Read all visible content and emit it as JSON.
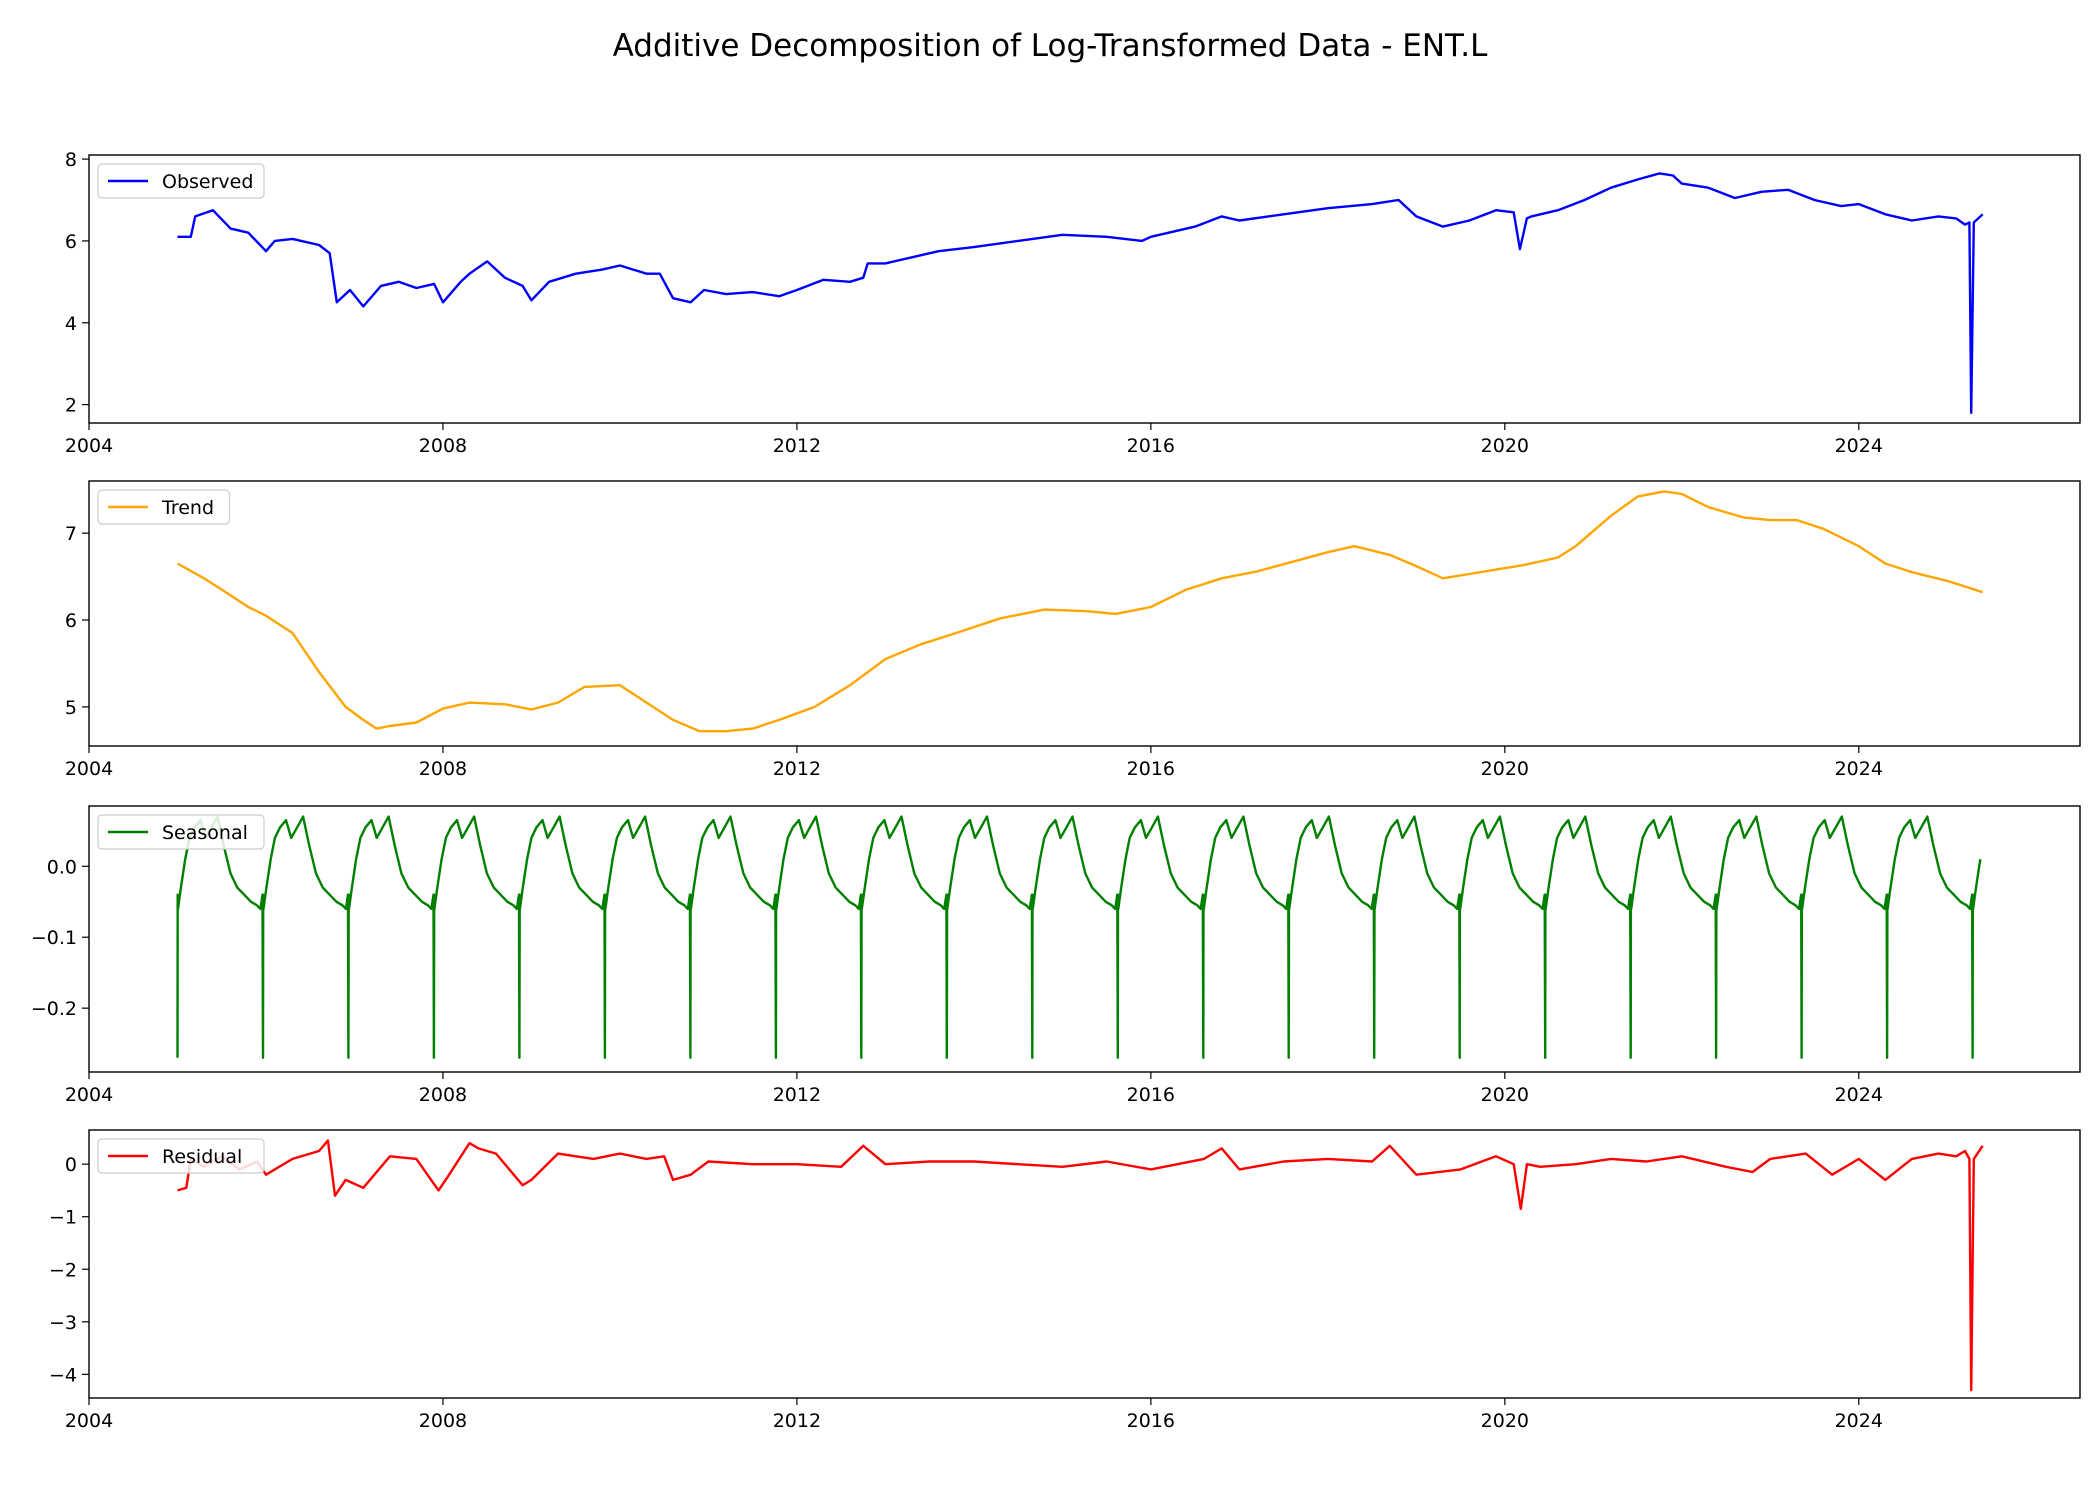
{
  "figure": {
    "title": "Additive Decomposition of Log-Transformed Data - ENT.L"
  },
  "chart_data": [
    {
      "type": "line",
      "name": "Observed",
      "color": "#0000ff",
      "xlim": [
        2004.0,
        2026.5
      ],
      "ylim": [
        1.55,
        8.1
      ],
      "xticks": [
        2004,
        2008,
        2012,
        2016,
        2020,
        2024
      ],
      "yticks": [
        2,
        4,
        6,
        8
      ],
      "ytick_labels": [
        "2",
        "4",
        "6",
        "8"
      ],
      "legend": "upper left",
      "series": [
        {
          "name": "Observed",
          "x": [
            2005.0,
            2005.15,
            2005.2,
            2005.4,
            2005.6,
            2005.8,
            2006.0,
            2006.1,
            2006.3,
            2006.6,
            2006.72,
            2006.8,
            2006.95,
            2007.1,
            2007.3,
            2007.5,
            2007.7,
            2007.9,
            2008.0,
            2008.2,
            2008.3,
            2008.5,
            2008.7,
            2008.9,
            2009.0,
            2009.2,
            2009.5,
            2009.8,
            2010.0,
            2010.3,
            2010.45,
            2010.6,
            2010.8,
            2010.95,
            2011.2,
            2011.5,
            2011.8,
            2012.0,
            2012.3,
            2012.6,
            2012.75,
            2012.8,
            2013.0,
            2013.3,
            2013.6,
            2014.0,
            2014.5,
            2015.0,
            2015.5,
            2015.9,
            2016.0,
            2016.5,
            2016.8,
            2017.0,
            2017.5,
            2018.0,
            2018.5,
            2018.8,
            2019.0,
            2019.3,
            2019.6,
            2019.9,
            2020.1,
            2020.17,
            2020.25,
            2020.3,
            2020.6,
            2020.9,
            2021.2,
            2021.5,
            2021.75,
            2021.9,
            2022.0,
            2022.3,
            2022.6,
            2022.9,
            2023.2,
            2023.5,
            2023.8,
            2024.0,
            2024.3,
            2024.6,
            2024.9,
            2025.1,
            2025.2,
            2025.25,
            2025.27,
            2025.3,
            2025.4
          ],
          "y": [
            6.1,
            6.1,
            6.6,
            6.75,
            6.3,
            6.2,
            5.75,
            6.0,
            6.05,
            5.9,
            5.7,
            4.5,
            4.8,
            4.4,
            4.9,
            5.0,
            4.85,
            4.95,
            4.5,
            5.0,
            5.2,
            5.5,
            5.1,
            4.9,
            4.55,
            5.0,
            5.2,
            5.3,
            5.4,
            5.2,
            5.2,
            4.6,
            4.5,
            4.8,
            4.7,
            4.75,
            4.65,
            4.8,
            5.05,
            5.0,
            5.1,
            5.45,
            5.45,
            5.6,
            5.75,
            5.85,
            6.0,
            6.15,
            6.1,
            6.0,
            6.1,
            6.35,
            6.6,
            6.5,
            6.65,
            6.8,
            6.9,
            7.0,
            6.6,
            6.35,
            6.5,
            6.75,
            6.7,
            5.8,
            6.55,
            6.6,
            6.75,
            7.0,
            7.3,
            7.5,
            7.65,
            7.6,
            7.4,
            7.3,
            7.05,
            7.2,
            7.25,
            7.0,
            6.85,
            6.9,
            6.65,
            6.5,
            6.6,
            6.55,
            6.4,
            6.45,
            1.8,
            6.45,
            6.65
          ]
        }
      ]
    },
    {
      "type": "line",
      "name": "Trend",
      "color": "#ffa500",
      "xlim": [
        2004.0,
        2026.5
      ],
      "ylim": [
        4.55,
        7.6
      ],
      "xticks": [
        2004,
        2008,
        2012,
        2016,
        2020,
        2024
      ],
      "yticks": [
        5,
        6,
        7
      ],
      "ytick_labels": [
        "5",
        "6",
        "7"
      ],
      "legend": "upper left",
      "series": [
        {
          "name": "Trend",
          "x": [
            2005.0,
            2005.3,
            2005.5,
            2005.8,
            2006.0,
            2006.3,
            2006.6,
            2006.9,
            2007.1,
            2007.25,
            2007.4,
            2007.7,
            2008.0,
            2008.3,
            2008.7,
            2009.0,
            2009.3,
            2009.6,
            2010.0,
            2010.3,
            2010.6,
            2010.9,
            2011.2,
            2011.5,
            2011.8,
            2012.2,
            2012.6,
            2013.0,
            2013.4,
            2013.8,
            2014.3,
            2014.8,
            2015.3,
            2015.6,
            2016.0,
            2016.4,
            2016.8,
            2017.2,
            2017.6,
            2018.0,
            2018.3,
            2018.7,
            2019.0,
            2019.3,
            2019.6,
            2019.9,
            2020.2,
            2020.6,
            2020.8,
            2021.2,
            2021.5,
            2021.8,
            2022.0,
            2022.3,
            2022.7,
            2023.0,
            2023.3,
            2023.6,
            2024.0,
            2024.3,
            2024.6,
            2025.0,
            2025.4
          ],
          "y": [
            6.65,
            6.48,
            6.35,
            6.15,
            6.05,
            5.85,
            5.4,
            5.0,
            4.85,
            4.75,
            4.78,
            4.82,
            4.98,
            5.05,
            5.03,
            4.97,
            5.05,
            5.23,
            5.25,
            5.05,
            4.85,
            4.72,
            4.72,
            4.75,
            4.85,
            5.0,
            5.25,
            5.55,
            5.72,
            5.85,
            6.02,
            6.12,
            6.1,
            6.07,
            6.15,
            6.35,
            6.48,
            6.56,
            6.67,
            6.78,
            6.85,
            6.75,
            6.62,
            6.48,
            6.53,
            6.58,
            6.63,
            6.72,
            6.85,
            7.2,
            7.42,
            7.48,
            7.45,
            7.3,
            7.18,
            7.15,
            7.15,
            7.05,
            6.85,
            6.65,
            6.55,
            6.45,
            6.32
          ]
        }
      ]
    },
    {
      "type": "line",
      "name": "Seasonal",
      "color": "#008000",
      "xlim": [
        2004.0,
        2026.5
      ],
      "ylim": [
        -0.29,
        0.085
      ],
      "xticks": [
        2004,
        2008,
        2012,
        2016,
        2020,
        2024
      ],
      "yticks": [
        -0.2,
        -0.1,
        0.0
      ],
      "ytick_labels": [
        "−0.2",
        "−0.1",
        "0.0"
      ],
      "legend": "upper left",
      "period_years": 0.966,
      "series": [
        {
          "name": "Seasonal",
          "shape_phase": [
            0.0,
            0.003,
            0.006,
            0.04,
            0.09,
            0.14,
            0.2,
            0.27,
            0.33,
            0.4,
            0.47,
            0.54,
            0.62,
            0.7,
            0.78,
            0.86,
            0.93,
            0.97,
            0.995,
            1.0
          ],
          "shape_y": [
            -0.27,
            -0.04,
            -0.06,
            -0.03,
            0.01,
            0.04,
            0.055,
            0.065,
            0.04,
            0.055,
            0.07,
            0.03,
            -0.01,
            -0.03,
            -0.04,
            -0.05,
            -0.055,
            -0.06,
            -0.04,
            -0.27
          ],
          "x_start": 2005.0,
          "x_end": 2025.4
        }
      ]
    },
    {
      "type": "line",
      "name": "Residual",
      "color": "#ff0000",
      "xlim": [
        2004.0,
        2026.5
      ],
      "ylim": [
        -4.45,
        0.65
      ],
      "xticks": [
        2004,
        2008,
        2012,
        2016,
        2020,
        2024
      ],
      "yticks": [
        -4,
        -3,
        -2,
        -1,
        0
      ],
      "ytick_labels": [
        "−4",
        "−3",
        "−2",
        "−1",
        "0"
      ],
      "legend": "upper left",
      "series": [
        {
          "name": "Residual",
          "x": [
            2005.0,
            2005.1,
            2005.15,
            2005.3,
            2005.5,
            2005.7,
            2005.9,
            2006.0,
            2006.3,
            2006.6,
            2006.7,
            2006.78,
            2006.9,
            2007.1,
            2007.4,
            2007.7,
            2007.95,
            2008.05,
            2008.3,
            2008.4,
            2008.6,
            2008.9,
            2009.0,
            2009.3,
            2009.7,
            2010.0,
            2010.3,
            2010.5,
            2010.6,
            2010.8,
            2011.0,
            2011.5,
            2012.0,
            2012.5,
            2012.75,
            2013.0,
            2013.5,
            2014.0,
            2014.5,
            2015.0,
            2015.5,
            2016.0,
            2016.6,
            2016.8,
            2017.0,
            2017.5,
            2018.0,
            2018.5,
            2018.7,
            2019.0,
            2019.5,
            2019.9,
            2020.1,
            2020.18,
            2020.25,
            2020.4,
            2020.8,
            2021.2,
            2021.6,
            2022.0,
            2022.5,
            2022.8,
            2023.0,
            2023.4,
            2023.7,
            2024.0,
            2024.3,
            2024.6,
            2024.9,
            2025.1,
            2025.2,
            2025.25,
            2025.27,
            2025.3,
            2025.4
          ],
          "y": [
            -0.5,
            -0.45,
            0.1,
            -0.05,
            0.15,
            -0.1,
            0.05,
            -0.2,
            0.1,
            0.25,
            0.45,
            -0.6,
            -0.3,
            -0.45,
            0.15,
            0.1,
            -0.5,
            -0.25,
            0.4,
            0.3,
            0.2,
            -0.4,
            -0.3,
            0.2,
            0.1,
            0.2,
            0.1,
            0.15,
            -0.3,
            -0.2,
            0.05,
            0.0,
            0.0,
            -0.05,
            0.35,
            0.0,
            0.05,
            0.05,
            0.0,
            -0.05,
            0.05,
            -0.1,
            0.1,
            0.3,
            -0.1,
            0.05,
            0.1,
            0.05,
            0.35,
            -0.2,
            -0.1,
            0.15,
            0.0,
            -0.85,
            0.0,
            -0.05,
            0.0,
            0.1,
            0.05,
            0.15,
            -0.05,
            -0.15,
            0.1,
            0.2,
            -0.2,
            0.1,
            -0.3,
            0.1,
            0.2,
            0.15,
            0.25,
            0.1,
            -4.3,
            0.1,
            0.35
          ]
        }
      ]
    }
  ]
}
